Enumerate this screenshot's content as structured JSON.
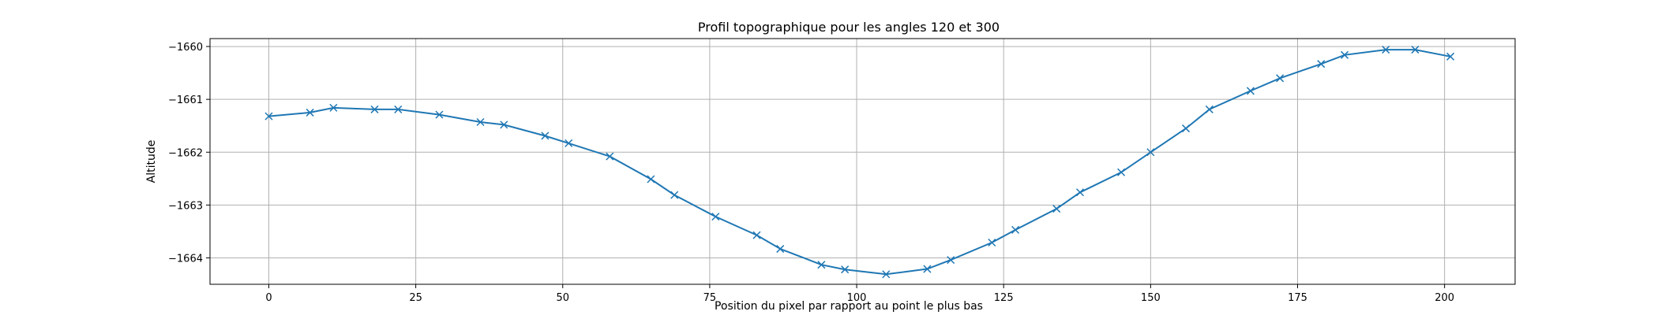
{
  "chart_data": {
    "type": "line",
    "title": "Profil topographique pour les angles 120 et 300",
    "xlabel": "Position du pixel par rapport au point le plus bas",
    "ylabel": "Altitude",
    "xlim": [
      -10,
      212
    ],
    "ylim": [
      -1664.5,
      -1659.85
    ],
    "x_ticks": [
      0,
      25,
      50,
      75,
      100,
      125,
      150,
      175,
      200
    ],
    "x_tick_labels": [
      "0",
      "25",
      "50",
      "75",
      "100",
      "125",
      "150",
      "175",
      "200"
    ],
    "y_ticks": [
      -1660,
      -1661,
      -1662,
      -1663,
      -1664
    ],
    "y_tick_labels": [
      "−1660",
      "−1661",
      "−1662",
      "−1663",
      "−1664"
    ],
    "grid": true,
    "colors": {
      "line": "#1f77b4",
      "grid": "#b0b0b0",
      "axes": "#000000"
    },
    "marker": "x",
    "series": [
      {
        "x": [
          0,
          7,
          11,
          18,
          22,
          29,
          36,
          40,
          47,
          51,
          58,
          65,
          69,
          76,
          83,
          87,
          94,
          98,
          105,
          112,
          116,
          123,
          127,
          134,
          138,
          145,
          150,
          156,
          160,
          167,
          172,
          179,
          183,
          190,
          195,
          201
        ],
        "y": [
          -1661.32,
          -1661.25,
          -1661.16,
          -1661.19,
          -1661.19,
          -1661.29,
          -1661.43,
          -1661.48,
          -1661.69,
          -1661.83,
          -1662.08,
          -1662.51,
          -1662.81,
          -1663.22,
          -1663.57,
          -1663.83,
          -1664.13,
          -1664.22,
          -1664.31,
          -1664.21,
          -1664.04,
          -1663.71,
          -1663.47,
          -1663.07,
          -1662.76,
          -1662.38,
          -1662.0,
          -1661.55,
          -1661.19,
          -1660.84,
          -1660.6,
          -1660.33,
          -1660.16,
          -1660.06,
          -1660.06,
          -1660.19
        ]
      }
    ]
  }
}
